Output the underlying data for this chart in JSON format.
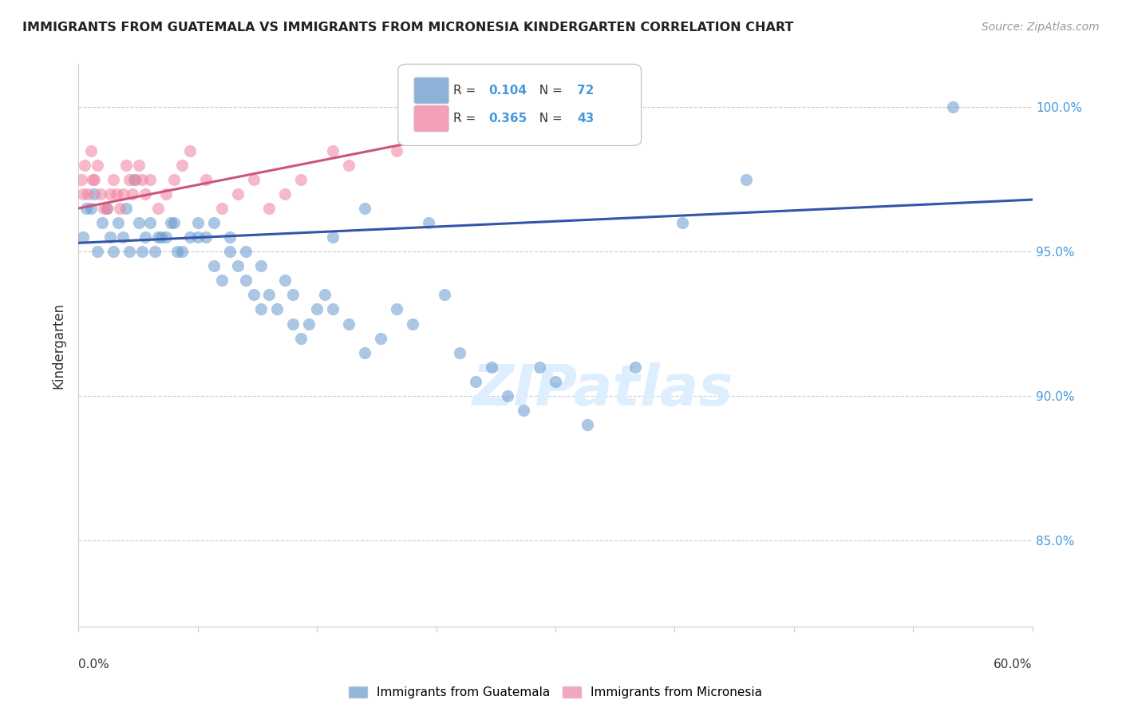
{
  "title": "IMMIGRANTS FROM GUATEMALA VS IMMIGRANTS FROM MICRONESIA KINDERGARTEN CORRELATION CHART",
  "source": "Source: ZipAtlas.com",
  "ylabel": "Kindergarten",
  "yticks": [
    85.0,
    90.0,
    95.0,
    100.0
  ],
  "ytick_labels": [
    "85.0%",
    "90.0%",
    "95.0%",
    "100.0%"
  ],
  "xlim": [
    0.0,
    60.0
  ],
  "ylim": [
    82.0,
    101.5
  ],
  "legend_entries": [
    {
      "label": "Immigrants from Guatemala",
      "color": "#92b4e3",
      "R": 0.104,
      "N": 72
    },
    {
      "label": "Immigrants from Micronesia",
      "color": "#f4a0b0",
      "R": 0.365,
      "N": 43
    }
  ],
  "guatemala_scatter_x": [
    0.5,
    1.0,
    1.5,
    2.0,
    2.5,
    3.0,
    3.5,
    4.0,
    4.5,
    5.0,
    5.5,
    6.0,
    6.5,
    7.0,
    7.5,
    8.0,
    8.5,
    9.0,
    9.5,
    10.0,
    10.5,
    11.0,
    11.5,
    12.0,
    12.5,
    13.0,
    13.5,
    14.0,
    14.5,
    15.0,
    15.5,
    16.0,
    17.0,
    18.0,
    19.0,
    20.0,
    21.0,
    22.0,
    23.0,
    24.0,
    25.0,
    26.0,
    27.0,
    28.0,
    29.0,
    30.0,
    32.0,
    35.0,
    38.0,
    42.0,
    0.3,
    0.8,
    1.2,
    1.8,
    2.2,
    2.8,
    3.2,
    3.8,
    4.2,
    4.8,
    5.2,
    5.8,
    6.2,
    7.5,
    8.5,
    9.5,
    10.5,
    11.5,
    13.5,
    16.0,
    18.0,
    55.0
  ],
  "guatemala_scatter_y": [
    96.5,
    97.0,
    96.0,
    95.5,
    96.0,
    96.5,
    97.5,
    95.0,
    96.0,
    95.5,
    95.5,
    96.0,
    95.0,
    95.5,
    96.0,
    95.5,
    94.5,
    94.0,
    95.0,
    94.5,
    94.0,
    93.5,
    93.0,
    93.5,
    93.0,
    94.0,
    92.5,
    92.0,
    92.5,
    93.0,
    93.5,
    93.0,
    92.5,
    91.5,
    92.0,
    93.0,
    92.5,
    96.0,
    93.5,
    91.5,
    90.5,
    91.0,
    90.0,
    89.5,
    91.0,
    90.5,
    89.0,
    91.0,
    96.0,
    97.5,
    95.5,
    96.5,
    95.0,
    96.5,
    95.0,
    95.5,
    95.0,
    96.0,
    95.5,
    95.0,
    95.5,
    96.0,
    95.0,
    95.5,
    96.0,
    95.5,
    95.0,
    94.5,
    93.5,
    95.5,
    96.5,
    100.0
  ],
  "micronesia_scatter_x": [
    0.2,
    0.4,
    0.6,
    0.8,
    1.0,
    1.2,
    1.4,
    1.6,
    1.8,
    2.0,
    2.2,
    2.4,
    2.6,
    2.8,
    3.0,
    3.2,
    3.4,
    3.6,
    3.8,
    4.0,
    4.2,
    4.5,
    5.0,
    5.5,
    6.0,
    6.5,
    7.0,
    8.0,
    9.0,
    10.0,
    11.0,
    12.0,
    13.0,
    14.0,
    16.0,
    17.0,
    20.0,
    22.0,
    26.0,
    30.0,
    35.0,
    0.3,
    0.9
  ],
  "micronesia_scatter_y": [
    97.5,
    98.0,
    97.0,
    98.5,
    97.5,
    98.0,
    97.0,
    96.5,
    96.5,
    97.0,
    97.5,
    97.0,
    96.5,
    97.0,
    98.0,
    97.5,
    97.0,
    97.5,
    98.0,
    97.5,
    97.0,
    97.5,
    96.5,
    97.0,
    97.5,
    98.0,
    98.5,
    97.5,
    96.5,
    97.0,
    97.5,
    96.5,
    97.0,
    97.5,
    98.5,
    98.0,
    98.5,
    99.0,
    99.5,
    100.0,
    100.2,
    97.0,
    97.5
  ],
  "guatemala_line_x": [
    0.0,
    60.0
  ],
  "guatemala_line_y": [
    95.3,
    96.8
  ],
  "micronesia_line_x": [
    0.0,
    35.0
  ],
  "micronesia_line_y": [
    96.5,
    100.3
  ],
  "scatter_size": 120,
  "scatter_alpha": 0.55,
  "scatter_color_guatemala": "#6699cc",
  "scatter_color_micronesia": "#f080a0",
  "line_color_guatemala": "#3355aa",
  "line_color_micronesia": "#cc5577",
  "background_color": "#ffffff",
  "grid_color": "#cccccc",
  "title_color": "#222222",
  "right_axis_color": "#4499dd",
  "watermark_text": "ZIPatlas",
  "watermark_color": "#ddeeff",
  "watermark_fontsize": 52
}
